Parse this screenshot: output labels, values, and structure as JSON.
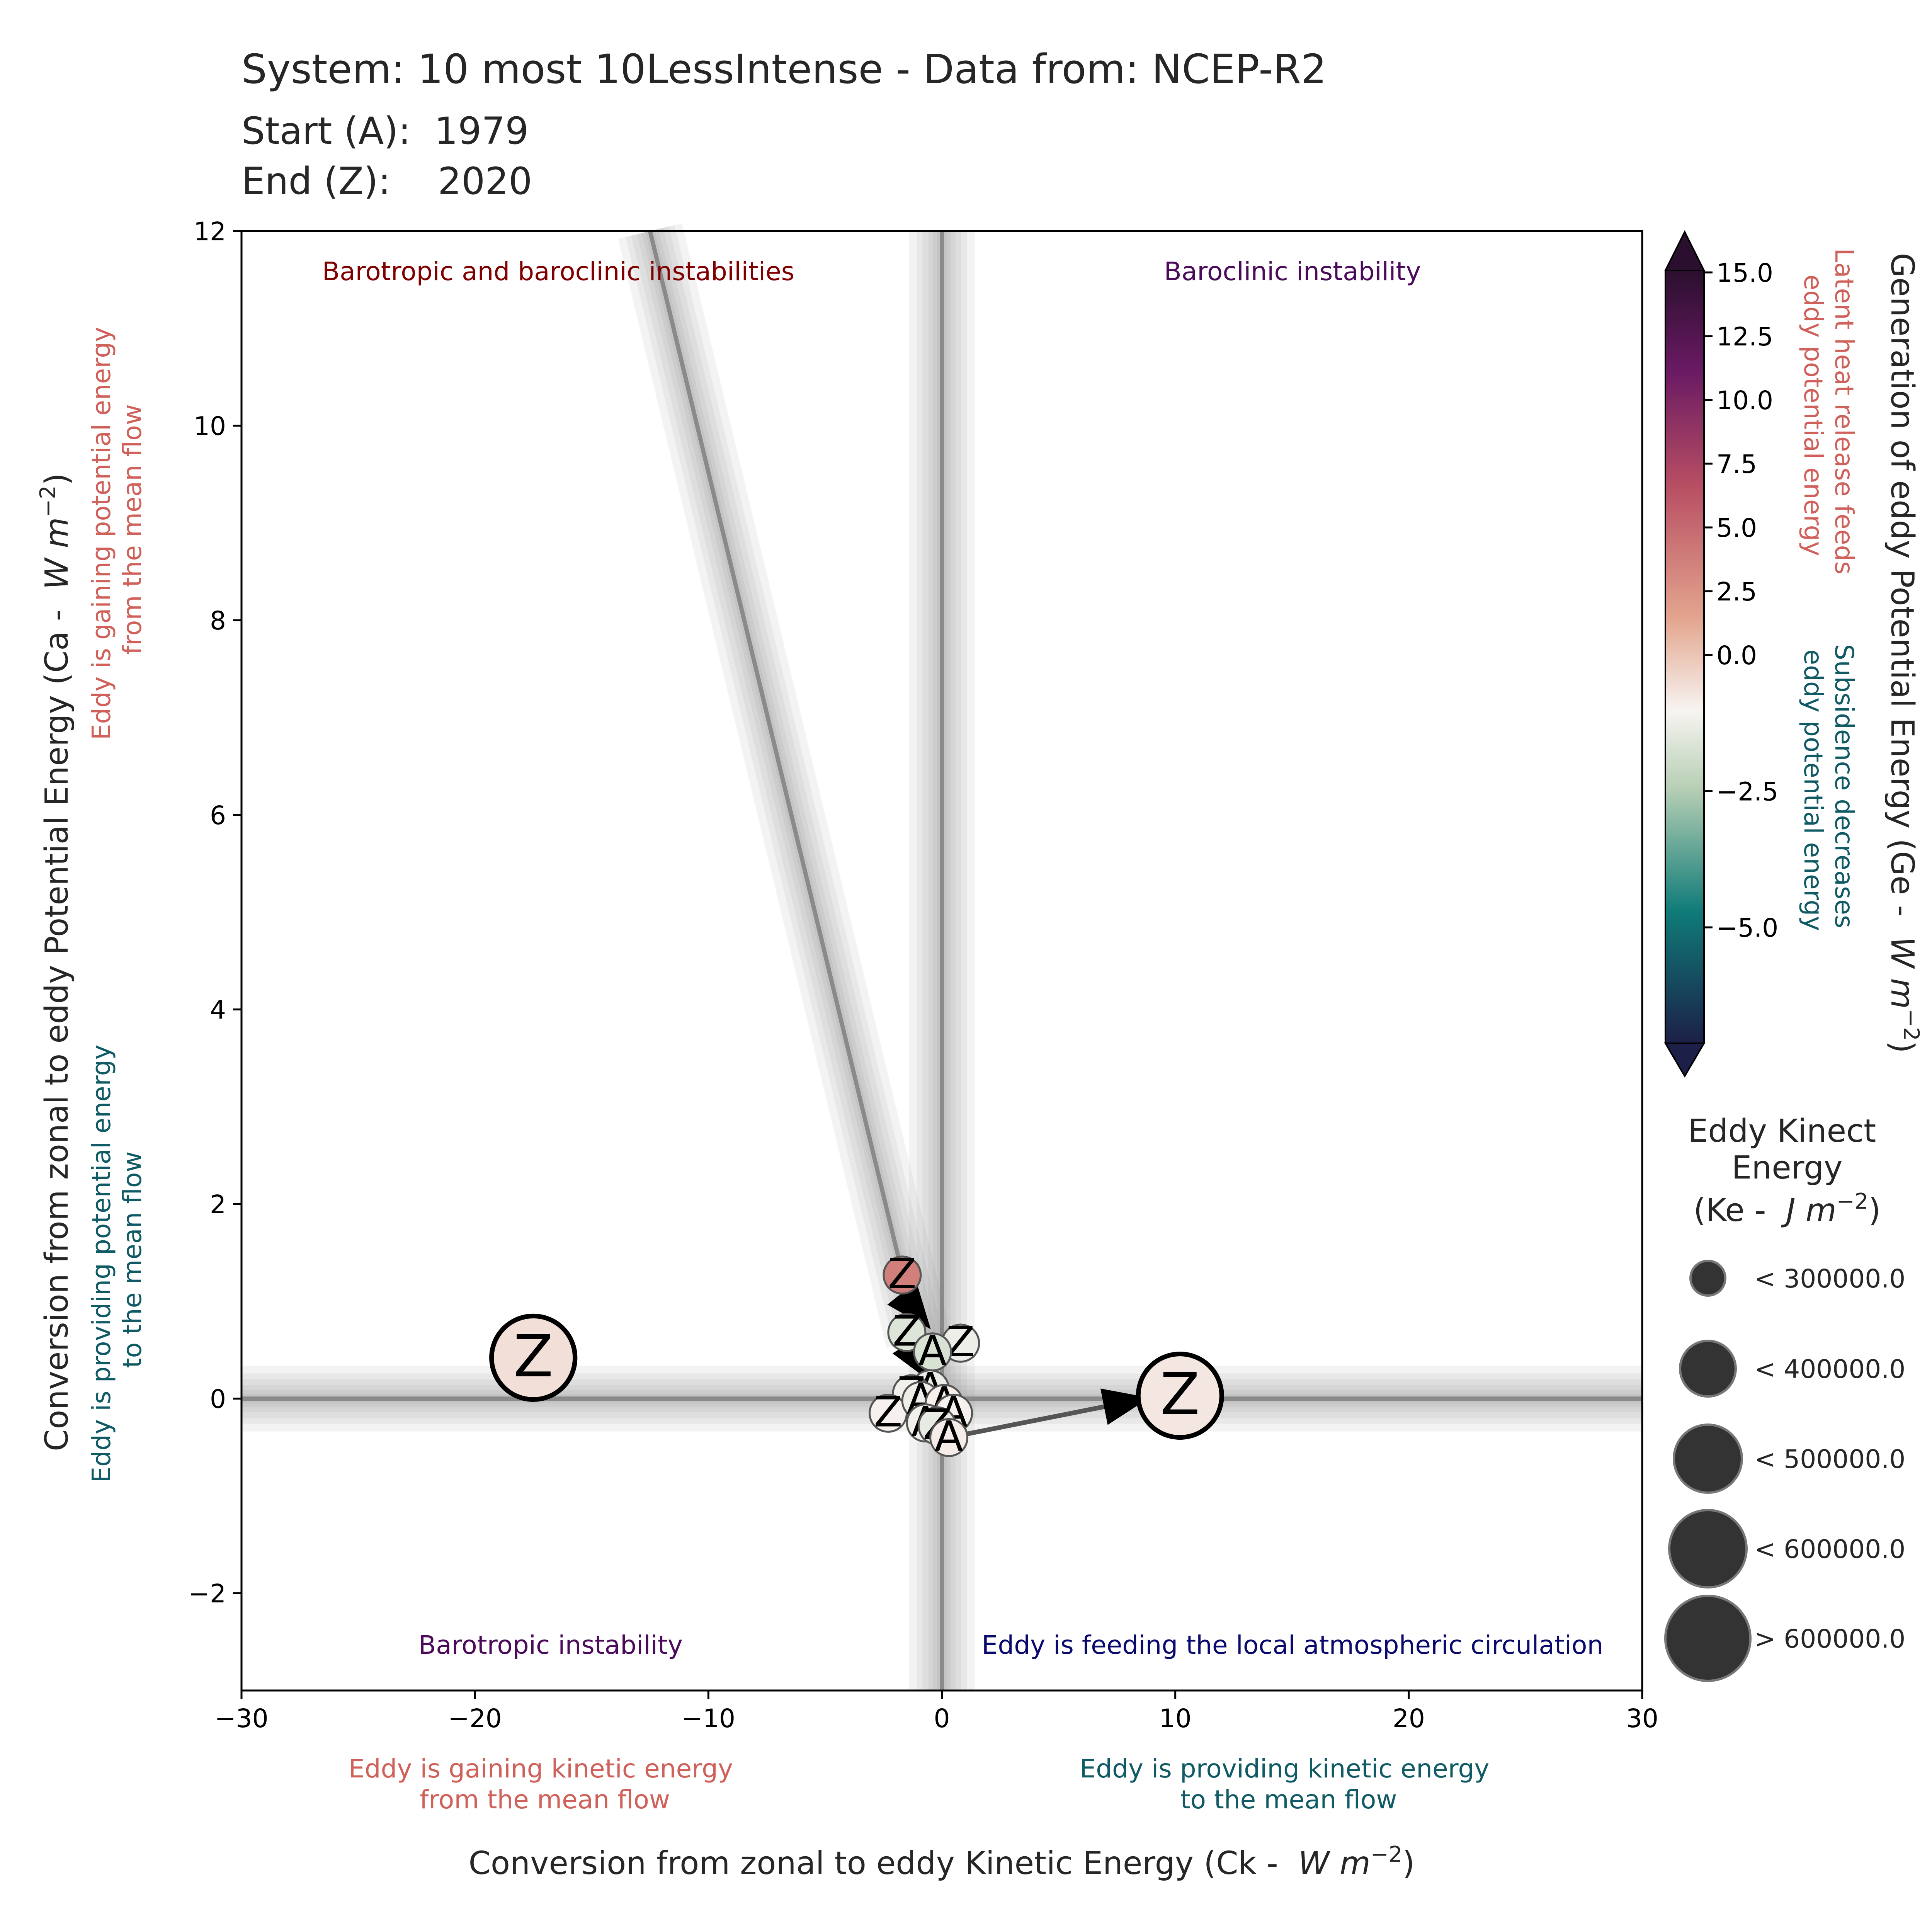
{
  "chart_data": {
    "type": "scatter",
    "title": "System: 10 most 10LessIntense - Data from: NCEP-R2",
    "start_label": "Start (A):  1979",
    "end_label": "End (Z):    2020",
    "xlabel_prefix": "Conversion from zonal to eddy Kinetic Energy (Ck -  ",
    "ylabel_prefix": "Conversion from zonal to eddy Potential Energy (Ca -  ",
    "unit_w": "W",
    "unit_m": "m",
    "unit_exp": "−2",
    "unit_close": ")",
    "xlim": [
      -30,
      30
    ],
    "ylim": [
      -3,
      12
    ],
    "xticks": [
      -30,
      -20,
      -10,
      0,
      10,
      20,
      30
    ],
    "xtick_labels": [
      "−30",
      "−20",
      "−10",
      "0",
      "10",
      "20",
      "30"
    ],
    "yticks": [
      -2,
      0,
      2,
      4,
      6,
      8,
      10,
      12
    ],
    "ytick_labels": [
      "−2",
      "0",
      "2",
      "4",
      "6",
      "8",
      "10",
      "12"
    ],
    "quadrants": {
      "top_left": "Barotropic and baroclinic instabilities",
      "top_right": "Baroclinic instability",
      "bottom_left": "Barotropic instability",
      "bottom_right": "Eddy is feeding the local atmospheric circulation"
    },
    "x_notes": {
      "left": [
        "Eddy is gaining kinetic energy",
        "from the mean flow"
      ],
      "right": [
        "Eddy is providing kinetic energy",
        "to the mean flow"
      ]
    },
    "y_notes": {
      "top": [
        "Eddy is gaining potential energy",
        "from the mean flow"
      ],
      "bottom": [
        "Eddy is providing potential energy",
        "to the mean flow"
      ]
    },
    "colorbar": {
      "label_prefix": "Generation of eddy Potential Energy (Ge -  ",
      "ticks": [
        15.0,
        12.5,
        10.0,
        7.5,
        5.0,
        2.5,
        0.0,
        -2.5,
        -5.0
      ],
      "tick_labels": [
        "15.0",
        "12.5",
        "10.0",
        "7.5",
        "5.0",
        "2.5",
        "0.0",
        "−2.5",
        "−5.0"
      ],
      "positive_note": [
        "Latent heat release feeds",
        "eddy potential energy"
      ],
      "negative_note": [
        "Subsidence decreases",
        "eddy potential energy"
      ],
      "colors": [
        "#1c1f47",
        "#0f7b78",
        "#b7cfb4",
        "#f7f4f1",
        "#e3a58e",
        "#b84f63",
        "#6a1a63",
        "#2a0f2e"
      ]
    },
    "size_legend": {
      "title": [
        "Eddy Kinect",
        "Energy"
      ],
      "title_unit_prefix": "(Ke -  ",
      "unit_j": "J",
      "entries": [
        "< 300000.0",
        "< 400000.0",
        "< 500000.0",
        "< 600000.0",
        "> 600000.0"
      ]
    },
    "reference_lines": [
      {
        "type": "vertical",
        "x": 0
      },
      {
        "type": "horizontal",
        "y": 0
      },
      {
        "type": "regression",
        "x1": -12.5,
        "y1": 12,
        "x2": -1,
        "y2": 0.6
      }
    ],
    "points": [
      {
        "x": -17.5,
        "y": 0.42,
        "ge": 0.8,
        "size": "> 600000.0",
        "label": "A"
      },
      {
        "x": -17.5,
        "y": 0.42,
        "ge": 0.8,
        "size": "> 600000.0",
        "label": "Z"
      },
      {
        "x": -1.7,
        "y": 1.27,
        "ge": 5.0,
        "size": "< 300000.0",
        "label": "Z"
      },
      {
        "x": -1.5,
        "y": 0.68,
        "ge": -0.8,
        "size": "< 300000.0",
        "label": "Z"
      },
      {
        "x": 0.8,
        "y": 0.57,
        "ge": -0.3,
        "size": "< 300000.0",
        "label": "A"
      },
      {
        "x": 0.8,
        "y": 0.57,
        "ge": -0.3,
        "size": "< 300000.0",
        "label": "Z"
      },
      {
        "x": -0.4,
        "y": 0.48,
        "ge": -1.0,
        "size": "< 300000.0",
        "label": "A"
      },
      {
        "x": -0.5,
        "y": 0.1,
        "ge": -0.4,
        "size": "< 300000.0",
        "label": "A"
      },
      {
        "x": -1.3,
        "y": 0.05,
        "ge": -0.2,
        "size": "< 300000.0",
        "label": "Z"
      },
      {
        "x": -2.3,
        "y": -0.15,
        "ge": 0.1,
        "size": "< 300000.0",
        "label": "Z"
      },
      {
        "x": -0.9,
        "y": -0.02,
        "ge": -0.3,
        "size": "< 300000.0",
        "label": "A"
      },
      {
        "x": 0.1,
        "y": -0.05,
        "ge": 0.2,
        "size": "< 300000.0",
        "label": "A"
      },
      {
        "x": -0.7,
        "y": -0.25,
        "ge": -0.2,
        "size": "< 300000.0",
        "label": "A"
      },
      {
        "x": 0.5,
        "y": -0.15,
        "ge": 0.1,
        "size": "< 300000.0",
        "label": "A"
      },
      {
        "x": -0.2,
        "y": -0.28,
        "ge": -0.5,
        "size": "< 300000.0",
        "label": "Z"
      },
      {
        "x": 0.3,
        "y": -0.4,
        "ge": 0.3,
        "size": "< 300000.0",
        "label": "A"
      },
      {
        "x": 10.2,
        "y": 0.03,
        "ge": 0.5,
        "size": "> 600000.0",
        "label": "Z"
      }
    ],
    "arrows": [
      {
        "from": [
          0.3,
          -0.4
        ],
        "to": [
          8.7,
          0.0
        ]
      },
      {
        "from": [
          -1.6,
          1.05
        ],
        "to": [
          -0.6,
          0.75
        ]
      },
      {
        "from": [
          -1.4,
          0.55
        ],
        "to": [
          -0.5,
          0.2
        ]
      }
    ]
  }
}
